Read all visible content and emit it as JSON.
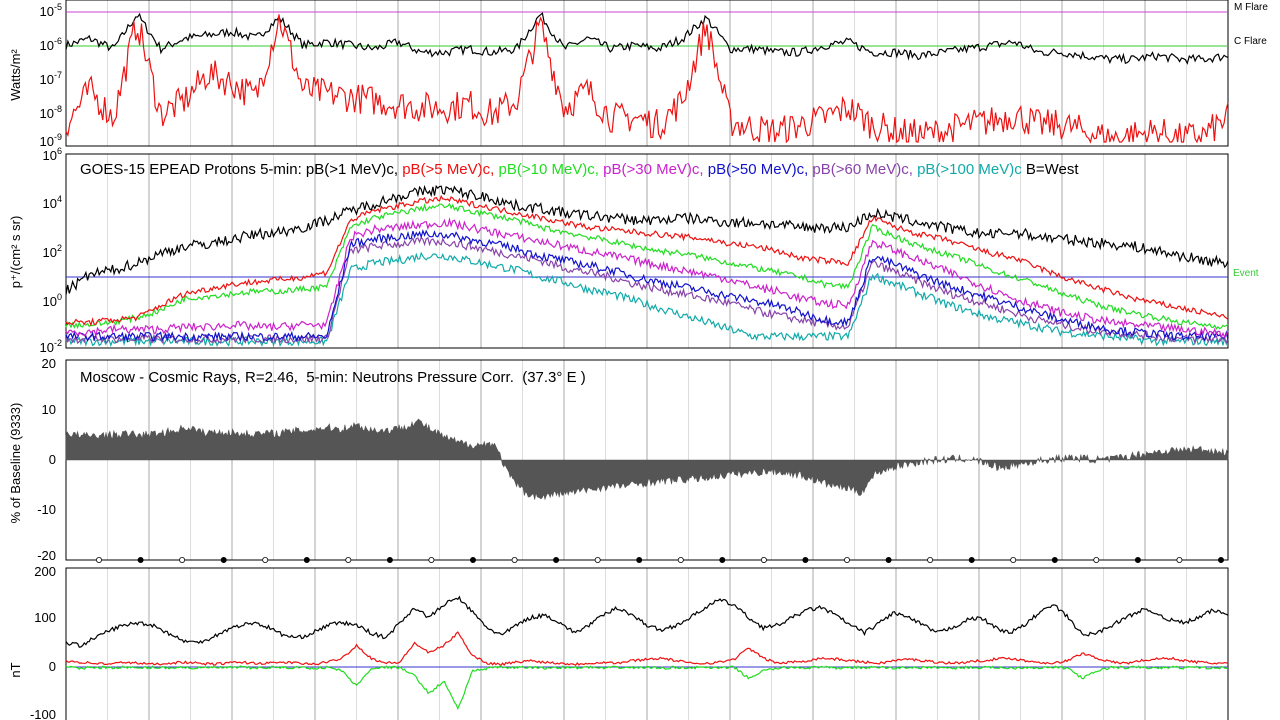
{
  "chart_data": [
    {
      "type": "line",
      "panel": "xray",
      "ylabel": "Watts/m²",
      "yscale": "log",
      "ylim_exp": [
        -9,
        -5
      ],
      "yticks": [
        {
          "base": "10",
          "exp": "-5"
        },
        {
          "base": "10",
          "exp": "-6"
        },
        {
          "base": "10",
          "exp": "-7"
        },
        {
          "base": "10",
          "exp": "-8"
        },
        {
          "base": "10",
          "exp": "-9"
        }
      ],
      "threshold_lines": [
        {
          "label": "M Flare",
          "exp": -5,
          "color": "#cc44cc"
        },
        {
          "label": "C Flare",
          "exp": -6,
          "color": "#33cc33"
        }
      ],
      "series": [
        {
          "color": "#000000",
          "exp_values": [
            -6.2,
            -6.0,
            -6.3,
            -5.3,
            -6.3,
            -6.0,
            -5.9,
            -5.8,
            -6.0,
            -5.4,
            -6.2,
            -6.1,
            -6.2,
            -6.3,
            -6.1,
            -6.4,
            -6.4,
            -6.3,
            -6.4,
            -6.3,
            -5.3,
            -6.3,
            -6.0,
            -6.3,
            -6.2,
            -6.3,
            -6.0,
            -5.4,
            -6.3,
            -6.3,
            -6.4,
            -6.4,
            -6.2,
            -6.1,
            -6.4,
            -6.4,
            -6.5,
            -6.4,
            -6.3,
            -6.2,
            -6.1,
            -6.4,
            -6.4,
            -6.5,
            -6.6,
            -6.6,
            -6.5,
            -6.6,
            -6.6,
            -6.5
          ]
        },
        {
          "color": "#ee1111",
          "exp_values": [
            -8.5,
            -7.5,
            -8.3,
            -5.5,
            -8.2,
            -7.8,
            -7.0,
            -7.3,
            -7.7,
            -5.4,
            -7.5,
            -7.6,
            -7.7,
            -7.8,
            -7.9,
            -8.0,
            -8.0,
            -7.9,
            -8.2,
            -7.8,
            -5.6,
            -8.0,
            -7.5,
            -8.3,
            -8.3,
            -8.5,
            -7.8,
            -5.6,
            -8.4,
            -8.6,
            -8.7,
            -8.5,
            -8.3,
            -8.0,
            -8.5,
            -8.7,
            -8.8,
            -8.7,
            -8.5,
            -8.4,
            -8.2,
            -8.5,
            -8.5,
            -8.7,
            -8.9,
            -8.8,
            -8.7,
            -8.9,
            -8.8,
            -8.3
          ]
        }
      ]
    },
    {
      "type": "line",
      "panel": "protons",
      "title_parts": [
        {
          "text": "GOES-15 EPEAD Protons 5-min: pB(>1 MeV)c, ",
          "color": "#000000"
        },
        {
          "text": "pB(>5 MeV)c, ",
          "color": "#ee1111"
        },
        {
          "text": "pB(>10 MeV)c, ",
          "color": "#22dd22"
        },
        {
          "text": "pB(>30 MeV)c, ",
          "color": "#cc22cc"
        },
        {
          "text": "pB(>50 MeV)c, ",
          "color": "#1111cc"
        },
        {
          "text": "pB(>60 MeV)c, ",
          "color": "#8844aa"
        },
        {
          "text": "pB(>100 MeV)c ",
          "color": "#11aaaa"
        },
        {
          "text": "B=West",
          "color": "#000000"
        }
      ],
      "ylabel": "p⁺/(cm² s sr)",
      "yscale": "log",
      "ylim_exp": [
        -2,
        6
      ],
      "yticks": [
        {
          "base": "10",
          "exp": "6"
        },
        {
          "base": "10",
          "exp": "4"
        },
        {
          "base": "10",
          "exp": "2"
        },
        {
          "base": "10",
          "exp": "0"
        },
        {
          "base": "10",
          "exp": "-2"
        }
      ],
      "threshold_lines": [
        {
          "label": "Event",
          "exp": 1,
          "color": "#33cc33"
        }
      ],
      "series": [
        {
          "name": "pB(>1 MeV)c",
          "color": "#000000",
          "exp_values": [
            0.3,
            1.0,
            1.2,
            1.5,
            1.9,
            2.2,
            2.3,
            2.5,
            2.7,
            2.8,
            3.0,
            3.3,
            3.7,
            4.0,
            4.3,
            4.5,
            4.6,
            4.4,
            4.2,
            3.9,
            3.8,
            3.6,
            3.5,
            3.4,
            3.3,
            3.3,
            3.4,
            3.3,
            3.2,
            3.2,
            3.1,
            3.0,
            3.0,
            3.0,
            3.6,
            3.4,
            3.2,
            3.0,
            2.8,
            2.7,
            2.8,
            2.6,
            2.5,
            2.4,
            2.3,
            2.2,
            2.0,
            1.8,
            1.6,
            1.5
          ]
        },
        {
          "name": "pB(>5 MeV)c",
          "color": "#ee1111",
          "exp_values": [
            -1.0,
            -1.0,
            -0.9,
            -0.8,
            -0.3,
            0.2,
            0.4,
            0.6,
            0.7,
            0.8,
            0.9,
            1.1,
            3.3,
            3.7,
            3.9,
            4.1,
            4.2,
            4.0,
            3.8,
            3.6,
            3.4,
            3.2,
            3.0,
            2.9,
            2.8,
            2.7,
            2.6,
            2.5,
            2.3,
            2.2,
            2.0,
            1.7,
            1.6,
            1.5,
            3.4,
            3.0,
            2.7,
            2.5,
            2.2,
            1.9,
            1.7,
            1.3,
            0.9,
            0.6,
            0.3,
            0.0,
            -0.2,
            -0.4,
            -0.6,
            -0.8
          ]
        },
        {
          "name": "pB(>10 MeV)c",
          "color": "#22dd22",
          "exp_values": [
            -1.1,
            -1.1,
            -1.0,
            -0.8,
            -0.5,
            0.0,
            0.1,
            0.2,
            0.3,
            0.3,
            0.4,
            0.5,
            3.0,
            3.4,
            3.6,
            3.8,
            3.9,
            3.7,
            3.5,
            3.3,
            3.0,
            2.8,
            2.6,
            2.4,
            2.2,
            2.0,
            1.9,
            1.7,
            1.5,
            1.3,
            1.1,
            0.9,
            0.6,
            0.5,
            3.0,
            2.6,
            2.2,
            1.9,
            1.6,
            1.2,
            0.9,
            0.6,
            0.2,
            -0.1,
            -0.4,
            -0.6,
            -0.8,
            -1.0,
            -1.1,
            -1.2
          ]
        },
        {
          "name": "pB(>30 MeV)c",
          "color": "#cc22cc",
          "exp_values": [
            -1.4,
            -1.4,
            -1.3,
            -1.3,
            -1.3,
            -1.2,
            -1.2,
            -1.1,
            -1.2,
            -1.2,
            -1.1,
            -1.1,
            2.6,
            2.9,
            3.0,
            3.1,
            3.2,
            3.0,
            2.8,
            2.6,
            2.4,
            2.2,
            2.0,
            1.8,
            1.6,
            1.4,
            1.2,
            1.0,
            0.8,
            0.5,
            0.3,
            0.0,
            -0.2,
            -0.3,
            2.4,
            2.0,
            1.6,
            1.2,
            0.8,
            0.4,
            0.0,
            -0.3,
            -0.6,
            -0.8,
            -1.0,
            -1.1,
            -1.2,
            -1.3,
            -1.4,
            -1.5
          ]
        },
        {
          "name": "pB(>50 MeV)c",
          "color": "#1111cc",
          "exp_values": [
            -1.6,
            -1.6,
            -1.6,
            -1.6,
            -1.6,
            -1.6,
            -1.6,
            -1.6,
            -1.6,
            -1.6,
            -1.6,
            -1.6,
            2.3,
            2.5,
            2.6,
            2.7,
            2.7,
            2.5,
            2.3,
            2.1,
            1.8,
            1.6,
            1.4,
            1.2,
            0.9,
            0.7,
            0.5,
            0.3,
            0.1,
            -0.1,
            -0.3,
            -0.6,
            -0.9,
            -1.0,
            1.8,
            1.4,
            1.0,
            0.6,
            0.3,
            0.0,
            -0.3,
            -0.6,
            -0.9,
            -1.1,
            -1.3,
            -1.4,
            -1.5,
            -1.6,
            -1.6,
            -1.6
          ]
        },
        {
          "name": "pB(>60 MeV)c",
          "color": "#8844aa",
          "exp_values": [
            -1.7,
            -1.7,
            -1.7,
            -1.7,
            -1.7,
            -1.7,
            -1.7,
            -1.7,
            -1.7,
            -1.7,
            -1.7,
            -1.7,
            2.0,
            2.2,
            2.3,
            2.4,
            2.4,
            2.2,
            2.0,
            1.8,
            1.6,
            1.3,
            1.1,
            0.9,
            0.6,
            0.4,
            0.2,
            0.0,
            -0.2,
            -0.5,
            -0.7,
            -0.9,
            -1.1,
            -1.2,
            1.5,
            1.1,
            0.7,
            0.3,
            0.0,
            -0.3,
            -0.6,
            -0.9,
            -1.1,
            -1.3,
            -1.4,
            -1.5,
            -1.6,
            -1.7,
            -1.7,
            -1.7
          ]
        },
        {
          "name": "pB(>100 MeV)c",
          "color": "#11aaaa",
          "exp_values": [
            -1.8,
            -1.8,
            -1.8,
            -1.8,
            -1.8,
            -1.8,
            -1.8,
            -1.8,
            -1.8,
            -1.8,
            -1.8,
            -1.8,
            1.2,
            1.5,
            1.6,
            1.8,
            1.8,
            1.6,
            1.4,
            1.2,
            0.9,
            0.7,
            0.4,
            0.2,
            -0.1,
            -0.4,
            -0.7,
            -1.0,
            -1.3,
            -1.6,
            -1.6,
            -1.6,
            -1.6,
            -1.6,
            1.0,
            0.6,
            0.2,
            -0.2,
            -0.5,
            -0.8,
            -1.0,
            -1.2,
            -1.4,
            -1.5,
            -1.6,
            -1.7,
            -1.8,
            -1.8,
            -1.8,
            -1.8
          ]
        }
      ]
    },
    {
      "type": "area",
      "panel": "cosmic",
      "title": "Moscow - Cosmic Rays, R=2.46,  5-min: Neutrons Pressure Corr.  (37.3° E )",
      "ylabel": "% of Baseline (9333)",
      "ylim": [
        -20,
        20
      ],
      "yticks": [
        "20",
        "10",
        "0",
        "-10",
        "-20"
      ],
      "color": "#555555",
      "values": [
        5.4,
        4.8,
        4.9,
        5.0,
        5.2,
        5.0,
        5.3,
        5.8,
        6.6,
        5.4,
        5.6,
        5.4,
        5.2,
        5.3,
        5.4,
        5.8,
        6.0,
        6.5,
        6.2,
        7.0,
        6.0,
        5.9,
        6.5,
        7.8,
        5.8,
        4.2,
        3.2,
        3.0,
        3.4,
        -3.3,
        -6.5,
        -7.5,
        -6.8,
        -6.5,
        -6.0,
        -5.5,
        -5.2,
        -5.0,
        -4.5,
        -4.2,
        -4.0,
        -3.8,
        -3.5,
        -3.0,
        -2.8,
        -2.5,
        -2.2,
        -2.5,
        -3.0,
        -4.0,
        -5.0,
        -5.5,
        -6.5,
        -2.5,
        -1.5,
        -0.8,
        -0.3,
        0.0,
        0.2,
        0.3,
        -0.5,
        -1.5,
        -1.0,
        -0.5,
        0.0,
        0.3,
        0.5,
        0.2,
        0.0,
        0.5,
        1.0,
        1.5,
        1.8,
        2.0,
        2.2,
        1.8,
        1.5
      ],
      "day_markers": [
        "open",
        "filled",
        "open",
        "filled",
        "open",
        "filled",
        "open",
        "filled",
        "open",
        "filled",
        "open",
        "filled",
        "open",
        "filled",
        "open",
        "filled",
        "open",
        "filled",
        "open",
        "filled",
        "open",
        "filled",
        "open",
        "filled",
        "open",
        "filled",
        "open",
        "filled"
      ]
    },
    {
      "type": "line",
      "panel": "magnetometer",
      "ylabel": "nT",
      "ylim": [
        -100,
        200
      ],
      "yticks": [
        "200",
        "100",
        "0",
        "-100"
      ],
      "series": [
        {
          "color": "#000000",
          "values": [
            60,
            55,
            70,
            85,
            95,
            100,
            95,
            80,
            65,
            60,
            70,
            85,
            95,
            100,
            90,
            75,
            70,
            80,
            95,
            100,
            95,
            80,
            70,
            100,
            130,
            110,
            135,
            150,
            120,
            90,
            75,
            95,
            110,
            115,
            100,
            80,
            95,
            115,
            130,
            115,
            95,
            85,
            95,
            110,
            130,
            145,
            135,
            110,
            90,
            95,
            110,
            125,
            130,
            115,
            95,
            80,
            100,
            120,
            110,
            95,
            80,
            90,
            105,
            110,
            90,
            80,
            95,
            120,
            135,
            110,
            75,
            80,
            95,
            110,
            125,
            120,
            105,
            100,
            110,
            125,
            115
          ]
        },
        {
          "color": "#ee1111",
          "values": [
            25,
            22,
            20,
            18,
            22,
            20,
            18,
            20,
            22,
            20,
            18,
            20,
            22,
            20,
            20,
            22,
            20,
            18,
            22,
            30,
            55,
            30,
            20,
            22,
            60,
            40,
            55,
            80,
            35,
            20,
            18,
            22,
            25,
            22,
            20,
            18,
            20,
            22,
            20,
            25,
            28,
            30,
            25,
            20,
            20,
            22,
            28,
            50,
            30,
            20,
            22,
            25,
            30,
            28,
            25,
            22,
            20,
            25,
            28,
            25,
            22,
            20,
            22,
            25,
            28,
            30,
            25,
            22,
            20,
            25,
            40,
            30,
            22,
            20,
            25,
            28,
            30,
            25,
            22,
            20,
            20
          ]
        },
        {
          "color": "#22dd22",
          "values": [
            12,
            10,
            12,
            11,
            12,
            10,
            12,
            11,
            12,
            10,
            12,
            11,
            12,
            10,
            12,
            11,
            12,
            10,
            12,
            5,
            -25,
            10,
            12,
            11,
            -5,
            -40,
            -15,
            -70,
            5,
            10,
            12,
            11,
            12,
            10,
            12,
            11,
            12,
            10,
            12,
            11,
            12,
            10,
            12,
            11,
            12,
            10,
            12,
            -10,
            5,
            10,
            12,
            11,
            12,
            10,
            12,
            11,
            12,
            10,
            12,
            11,
            12,
            10,
            12,
            11,
            12,
            10,
            12,
            11,
            12,
            10,
            -10,
            5,
            12,
            11,
            12,
            10,
            12,
            11,
            12,
            10,
            12
          ]
        }
      ]
    }
  ]
}
